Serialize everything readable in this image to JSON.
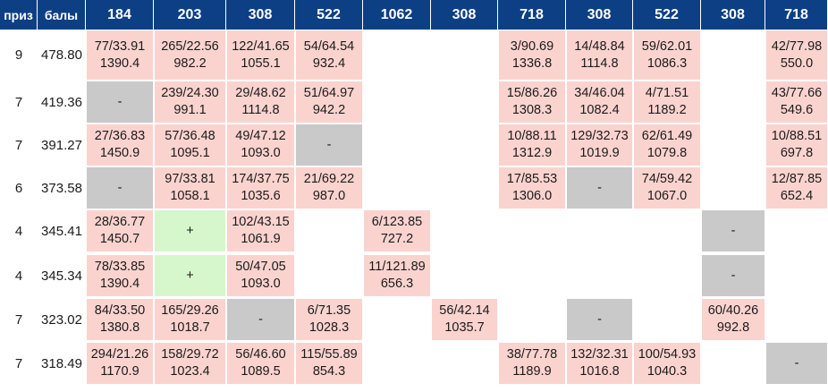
{
  "header": {
    "prize_label": "приз",
    "points_label": "балы",
    "columns": [
      "184",
      "203",
      "308",
      "522",
      "1062",
      "308",
      "718",
      "308",
      "522",
      "308",
      "718"
    ]
  },
  "colors": {
    "header_bg": "#0d3f85",
    "score_cell": "#fad3cf",
    "empty_mark_cell": "#c9c9c9",
    "plus_cell": "#d6f7cc"
  },
  "rows": [
    {
      "prize": "9",
      "points": "478.80",
      "cells": [
        {
          "type": "score",
          "a": "77/33.91",
          "b": "1390.4"
        },
        {
          "type": "score",
          "a": "265/22.56",
          "b": "982.2"
        },
        {
          "type": "score",
          "a": "122/41.65",
          "b": "1055.1"
        },
        {
          "type": "score",
          "a": "54/64.54",
          "b": "932.4"
        },
        {
          "type": "blank"
        },
        {
          "type": "blank"
        },
        {
          "type": "score",
          "a": "3/90.69",
          "b": "1336.8"
        },
        {
          "type": "score",
          "a": "14/48.84",
          "b": "1114.8"
        },
        {
          "type": "score",
          "a": "59/62.01",
          "b": "1086.3"
        },
        {
          "type": "blank"
        },
        {
          "type": "score",
          "a": "42/77.98",
          "b": "550.0"
        }
      ]
    },
    {
      "prize": "7",
      "points": "419.36",
      "cells": [
        {
          "type": "dash",
          "a": "-"
        },
        {
          "type": "score",
          "a": "239/24.30",
          "b": "991.1"
        },
        {
          "type": "score",
          "a": "29/48.62",
          "b": "1114.8"
        },
        {
          "type": "score",
          "a": "51/64.97",
          "b": "942.2"
        },
        {
          "type": "blank"
        },
        {
          "type": "blank"
        },
        {
          "type": "score",
          "a": "15/86.26",
          "b": "1308.3"
        },
        {
          "type": "score",
          "a": "34/46.04",
          "b": "1082.4"
        },
        {
          "type": "score",
          "a": "4/71.51",
          "b": "1189.2"
        },
        {
          "type": "blank"
        },
        {
          "type": "score",
          "a": "43/77.66",
          "b": "549.6"
        }
      ]
    },
    {
      "prize": "7",
      "points": "391.27",
      "cells": [
        {
          "type": "score",
          "a": "27/36.83",
          "b": "1450.9"
        },
        {
          "type": "score",
          "a": "57/36.48",
          "b": "1095.1"
        },
        {
          "type": "score",
          "a": "49/47.12",
          "b": "1093.0"
        },
        {
          "type": "dash",
          "a": "-"
        },
        {
          "type": "blank"
        },
        {
          "type": "blank"
        },
        {
          "type": "score",
          "a": "10/88.11",
          "b": "1312.9"
        },
        {
          "type": "score",
          "a": "129/32.73",
          "b": "1019.9"
        },
        {
          "type": "score",
          "a": "62/61.49",
          "b": "1079.8"
        },
        {
          "type": "blank"
        },
        {
          "type": "score",
          "a": "10/88.51",
          "b": "697.8"
        }
      ]
    },
    {
      "prize": "6",
      "points": "373.58",
      "cells": [
        {
          "type": "dash",
          "a": "-"
        },
        {
          "type": "score",
          "a": "97/33.81",
          "b": "1058.1"
        },
        {
          "type": "score",
          "a": "174/37.75",
          "b": "1035.6"
        },
        {
          "type": "score",
          "a": "21/69.22",
          "b": "987.0"
        },
        {
          "type": "blank"
        },
        {
          "type": "blank"
        },
        {
          "type": "score",
          "a": "17/85.53",
          "b": "1306.0"
        },
        {
          "type": "dash",
          "a": "-"
        },
        {
          "type": "score",
          "a": "74/59.42",
          "b": "1067.0"
        },
        {
          "type": "blank"
        },
        {
          "type": "score",
          "a": "12/87.85",
          "b": "652.4"
        }
      ]
    },
    {
      "prize": "4",
      "points": "345.41",
      "cells": [
        {
          "type": "score",
          "a": "28/36.77",
          "b": "1450.7"
        },
        {
          "type": "plus",
          "a": "+"
        },
        {
          "type": "score",
          "a": "102/43.15",
          "b": "1061.9"
        },
        {
          "type": "blank"
        },
        {
          "type": "score",
          "a": "6/123.85",
          "b": "727.2"
        },
        {
          "type": "blank"
        },
        {
          "type": "blank"
        },
        {
          "type": "blank"
        },
        {
          "type": "blank"
        },
        {
          "type": "dash",
          "a": "-"
        },
        {
          "type": "blank"
        }
      ]
    },
    {
      "prize": "4",
      "points": "345.34",
      "cells": [
        {
          "type": "score",
          "a": "78/33.85",
          "b": "1390.4"
        },
        {
          "type": "plus",
          "a": "+"
        },
        {
          "type": "score",
          "a": "50/47.05",
          "b": "1093.0"
        },
        {
          "type": "blank"
        },
        {
          "type": "score",
          "a": "11/121.89",
          "b": "656.3"
        },
        {
          "type": "blank"
        },
        {
          "type": "blank"
        },
        {
          "type": "blank"
        },
        {
          "type": "blank"
        },
        {
          "type": "dash",
          "a": "-"
        },
        {
          "type": "blank"
        }
      ]
    },
    {
      "prize": "7",
      "points": "323.02",
      "cells": [
        {
          "type": "score",
          "a": "84/33.50",
          "b": "1380.8"
        },
        {
          "type": "score",
          "a": "165/29.26",
          "b": "1018.7"
        },
        {
          "type": "dash",
          "a": "-"
        },
        {
          "type": "score",
          "a": "6/71.35",
          "b": "1028.3"
        },
        {
          "type": "blank"
        },
        {
          "type": "score",
          "a": "56/42.14",
          "b": "1035.7"
        },
        {
          "type": "blank"
        },
        {
          "type": "dash",
          "a": "-"
        },
        {
          "type": "blank"
        },
        {
          "type": "score",
          "a": "60/40.26",
          "b": "992.8"
        },
        {
          "type": "blank"
        }
      ]
    },
    {
      "prize": "7",
      "points": "318.49",
      "cells": [
        {
          "type": "score",
          "a": "294/21.26",
          "b": "1170.9"
        },
        {
          "type": "score",
          "a": "158/29.72",
          "b": "1023.4"
        },
        {
          "type": "score",
          "a": "56/46.60",
          "b": "1089.5"
        },
        {
          "type": "score",
          "a": "115/55.89",
          "b": "854.3"
        },
        {
          "type": "blank"
        },
        {
          "type": "blank"
        },
        {
          "type": "score",
          "a": "38/77.78",
          "b": "1189.9"
        },
        {
          "type": "score",
          "a": "132/32.31",
          "b": "1016.8"
        },
        {
          "type": "score",
          "a": "100/54.93",
          "b": "1040.3"
        },
        {
          "type": "blank"
        },
        {
          "type": "dash",
          "a": "-"
        }
      ]
    }
  ]
}
